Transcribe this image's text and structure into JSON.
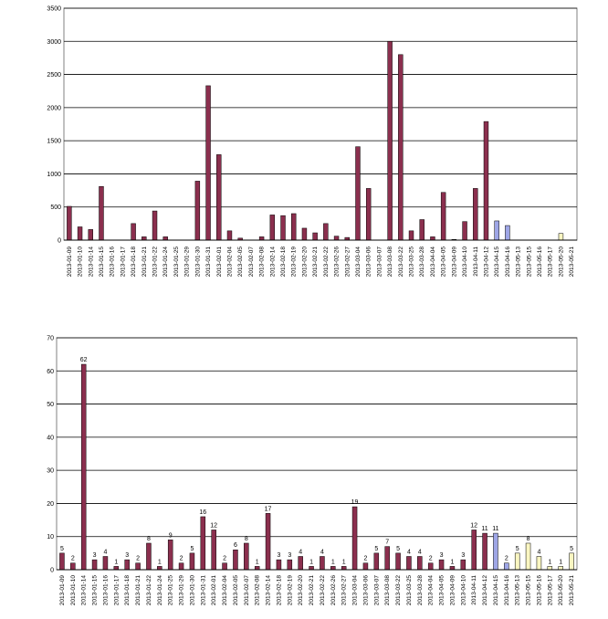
{
  "colors": {
    "bar_main": "#8B2F4E",
    "bar_blue": "#9EA6E6",
    "bar_cream": "#FAF6C2",
    "gridline": "#000000",
    "plot_bg": "#FFFFFF"
  },
  "chart_data": [
    {
      "type": "bar",
      "title": "",
      "xlabel": "",
      "ylabel": "",
      "ylim": [
        0,
        3500
      ],
      "yticks": [
        0,
        500,
        1000,
        1500,
        2000,
        2500,
        3000,
        3500
      ],
      "grid": true,
      "legend": "none",
      "categories": [
        "2013-01-09",
        "2013-01-10",
        "2013-01-14",
        "2013-01-15",
        "2013-01-16",
        "2013-01-17",
        "2013-01-18",
        "2013-01-21",
        "2013-01-22",
        "2013-01-24",
        "2013-01-25",
        "2013-01-29",
        "2013-01-30",
        "2013-01-31",
        "2013-02-01",
        "2013-02-04",
        "2013-02-05",
        "2013-02-07",
        "2013-02-08",
        "2013-02-14",
        "2013-02-18",
        "2013-02-19",
        "2013-02-20",
        "2013-02-21",
        "2013-02-22",
        "2013-02-26",
        "2013-02-27",
        "2013-03-04",
        "2013-03-06",
        "2013-03-07",
        "2013-03-08",
        "2013-03-22",
        "2013-03-25",
        "2013-03-28",
        "2013-04-04",
        "2013-04-05",
        "2013-04-09",
        "2013-04-10",
        "2013-04-11",
        "2013-04-12",
        "2013-04-15",
        "2013-04-16",
        "2013-05-13",
        "2013-05-15",
        "2013-05-16",
        "2013-05-17",
        "2013-05-20",
        "2013-05-21"
      ],
      "values": [
        510,
        200,
        160,
        810,
        0,
        0,
        250,
        50,
        440,
        50,
        0,
        0,
        890,
        2330,
        1290,
        140,
        30,
        0,
        50,
        380,
        370,
        400,
        180,
        110,
        250,
        60,
        40,
        1410,
        780,
        0,
        3000,
        2800,
        140,
        310,
        50,
        720,
        10,
        280,
        780,
        1790,
        290,
        220,
        0,
        0,
        0,
        0,
        100,
        0
      ],
      "bar_colors": [
        "m",
        "m",
        "m",
        "m",
        "m",
        "m",
        "m",
        "m",
        "m",
        "m",
        "m",
        "m",
        "m",
        "m",
        "m",
        "m",
        "m",
        "m",
        "m",
        "m",
        "m",
        "m",
        "m",
        "m",
        "m",
        "m",
        "m",
        "m",
        "m",
        "m",
        "m",
        "m",
        "m",
        "m",
        "m",
        "m",
        "m",
        "m",
        "m",
        "m",
        "b",
        "b",
        "c",
        "c",
        "c",
        "c",
        "c",
        "c"
      ]
    },
    {
      "type": "bar",
      "title": "",
      "xlabel": "",
      "ylabel": "",
      "ylim": [
        0,
        70
      ],
      "yticks": [
        0,
        10,
        20,
        30,
        40,
        50,
        60,
        70
      ],
      "grid": true,
      "legend": "none",
      "categories": [
        "2013-01-09",
        "2013-01-10",
        "2013-01-14",
        "2013-01-15",
        "2013-01-16",
        "2013-01-17",
        "2013-01-18",
        "2013-01-21",
        "2013-01-22",
        "2013-01-24",
        "2013-01-25",
        "2013-01-29",
        "2013-01-30",
        "2013-01-31",
        "2013-02-01",
        "2013-02-04",
        "2013-02-05",
        "2013-02-07",
        "2013-02-08",
        "2013-02-14",
        "2013-02-18",
        "2013-02-19",
        "2013-02-20",
        "2013-02-21",
        "2013-02-22",
        "2013-02-26",
        "2013-02-27",
        "2013-03-04",
        "2013-03-06",
        "2013-03-07",
        "2013-03-08",
        "2013-03-22",
        "2013-03-25",
        "2013-03-28",
        "2013-04-04",
        "2013-04-05",
        "2013-04-09",
        "2013-04-10",
        "2013-04-11",
        "2013-04-12",
        "2013-04-15",
        "2013-04-16",
        "2013-05-13",
        "2013-05-15",
        "2013-05-16",
        "2013-05-17",
        "2013-05-20",
        "2013-05-21"
      ],
      "values": [
        5,
        2,
        62,
        3,
        4,
        1,
        3,
        2,
        8,
        1,
        9,
        2,
        5,
        16,
        12,
        2,
        6,
        8,
        1,
        17,
        3,
        3,
        4,
        1,
        4,
        1,
        1,
        19,
        2,
        5,
        7,
        5,
        4,
        4,
        2,
        3,
        1,
        3,
        12,
        11,
        11,
        2,
        5,
        8,
        4,
        1,
        1,
        5
      ],
      "data_labels": [
        "5",
        "2",
        "62",
        "3",
        "4",
        "1",
        "3",
        "2",
        "8",
        "1",
        "9",
        "2",
        "5",
        "16",
        "12",
        "2",
        "6",
        "8",
        "1",
        "17",
        "3",
        "3",
        "4",
        "1",
        "4",
        "1",
        "1",
        "19",
        "2",
        "5",
        "7",
        "5",
        "4",
        "4",
        "2",
        "3",
        "1",
        "3",
        "12",
        "11",
        "11",
        "2",
        "5",
        "8",
        "4",
        "1",
        "1",
        "5"
      ],
      "bar_colors": [
        "m",
        "m",
        "m",
        "m",
        "m",
        "m",
        "m",
        "m",
        "m",
        "m",
        "m",
        "m",
        "m",
        "m",
        "m",
        "m",
        "m",
        "m",
        "m",
        "m",
        "m",
        "m",
        "m",
        "m",
        "m",
        "m",
        "m",
        "m",
        "m",
        "m",
        "m",
        "m",
        "m",
        "m",
        "m",
        "m",
        "m",
        "m",
        "m",
        "m",
        "b",
        "b",
        "c",
        "c",
        "c",
        "c",
        "c",
        "c"
      ]
    }
  ]
}
